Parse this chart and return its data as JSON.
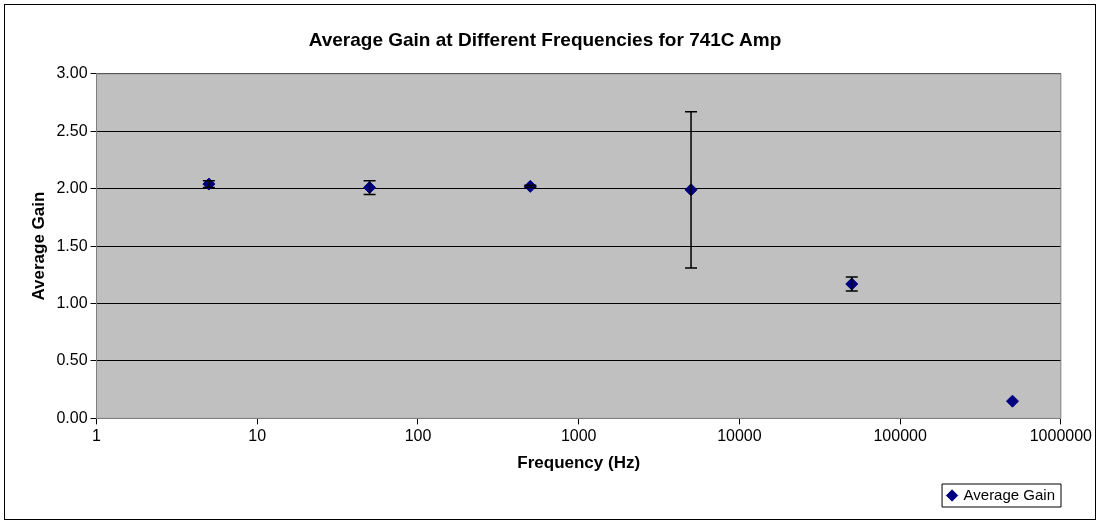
{
  "chart_data": {
    "type": "scatter",
    "title": "Average Gain at Different Frequencies for 741C Amp",
    "xlabel": "Frequency (Hz)",
    "ylabel": "Average Gain",
    "x": [
      5,
      50,
      500,
      5000,
      50000,
      500000
    ],
    "series": [
      {
        "name": "Average Gain",
        "color": "#000080",
        "values": [
          2.04,
          2.01,
          2.02,
          1.99,
          1.17,
          0.15
        ],
        "errors": [
          0.03,
          0.06,
          0.01,
          0.68,
          0.06,
          null
        ]
      }
    ],
    "log": "x",
    "xlim": [
      1,
      1000000
    ],
    "xticks": [
      1,
      10,
      100,
      1000,
      10000,
      100000,
      1000000
    ],
    "ylim": [
      0,
      3
    ],
    "yticks": [
      {
        "value": 0,
        "label": "0.00"
      },
      {
        "value": 0.5,
        "label": "0.50"
      },
      {
        "value": 1,
        "label": "1.00"
      },
      {
        "value": 1.5,
        "label": "1.50"
      },
      {
        "value": 2,
        "label": "2.00"
      },
      {
        "value": 2.5,
        "label": "2.50"
      },
      {
        "value": 3,
        "label": "3.00"
      }
    ],
    "grid": "y",
    "legend": "bottom right",
    "marker": "diamond"
  }
}
